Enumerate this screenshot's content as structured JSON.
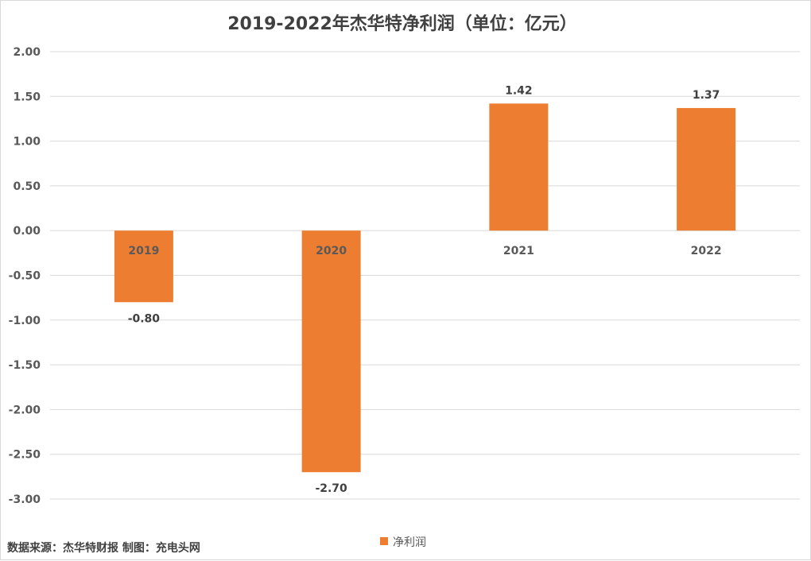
{
  "chart_data": {
    "type": "bar",
    "title": "2019-2022年杰华特净利润（单位：亿元）",
    "categories": [
      "2019",
      "2020",
      "2021",
      "2022"
    ],
    "series": [
      {
        "name": "净利润",
        "values": [
          -0.8,
          -2.7,
          1.42,
          1.37
        ],
        "color": "#ED7D31"
      }
    ],
    "data_labels": [
      "-0.80",
      "-2.70",
      "1.42",
      "1.37"
    ],
    "ylim": [
      -3.0,
      2.0
    ],
    "yticks": [
      "2.00",
      "1.50",
      "1.00",
      "0.50",
      "0.00",
      "-0.50",
      "-1.00",
      "-1.50",
      "-2.00",
      "-2.50",
      "-3.00"
    ],
    "ytick_values": [
      2.0,
      1.5,
      1.0,
      0.5,
      0.0,
      -0.5,
      -1.0,
      -1.5,
      -2.0,
      -2.5,
      -3.0
    ],
    "grid": true,
    "legend_position": "bottom"
  },
  "footer": {
    "source": "数据来源：杰华特财报  制图：充电头网"
  }
}
